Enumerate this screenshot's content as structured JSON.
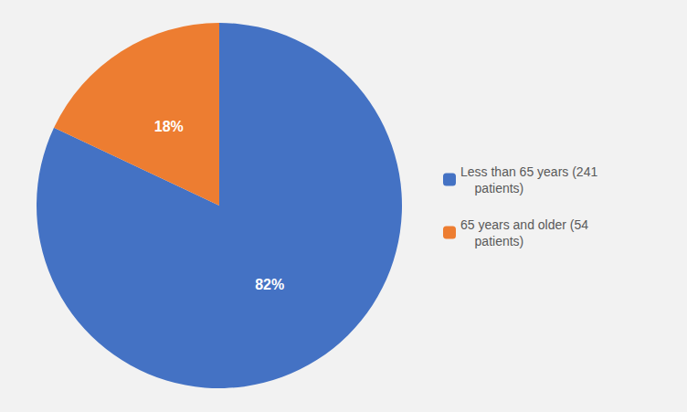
{
  "chart_data": {
    "type": "pie",
    "categories": [
      "Less than 65 years (241\n    patients)",
      "65 years and older (54\n    patients)"
    ],
    "values": [
      82,
      18
    ],
    "value_labels": [
      "82%",
      "18%"
    ],
    "colors": [
      "#4472C4",
      "#ED7D31"
    ],
    "data_labels": true,
    "legend": "right"
  }
}
